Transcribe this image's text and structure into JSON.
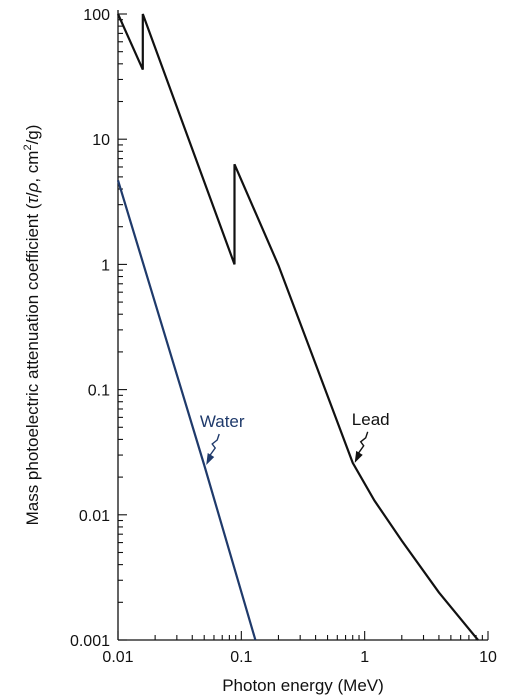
{
  "chart_data": {
    "type": "line",
    "xlabel": "Photon energy (MeV)",
    "ylabel_main": "Mass photoelectric attenuation coefficient (",
    "ylabel_tau": "τ",
    "ylabel_slash": "/",
    "ylabel_rho": "ρ",
    "ylabel_units": ", cm",
    "ylabel_sup": "2",
    "ylabel_end": "/g)",
    "x_scale": "log",
    "y_scale": "log",
    "xlim": [
      0.01,
      10
    ],
    "ylim": [
      0.001,
      100
    ],
    "x_ticks": [
      {
        "value": 0.01,
        "label": "0.01"
      },
      {
        "value": 0.1,
        "label": "0.1"
      },
      {
        "value": 1,
        "label": "1"
      },
      {
        "value": 10,
        "label": "10"
      }
    ],
    "y_ticks": [
      {
        "value": 0.001,
        "label": "0.001"
      },
      {
        "value": 0.01,
        "label": "0.01"
      },
      {
        "value": 0.1,
        "label": "0.1"
      },
      {
        "value": 1,
        "label": "1"
      },
      {
        "value": 10,
        "label": "10"
      },
      {
        "value": 100,
        "label": "100"
      }
    ],
    "grid": false,
    "series": [
      {
        "name": "Lead",
        "color": "#111111",
        "points": [
          [
            0.01,
            100
          ],
          [
            0.0159,
            36
          ],
          [
            0.0159,
            100
          ],
          [
            0.088,
            1.0
          ],
          [
            0.088,
            6.3
          ],
          [
            0.2,
            0.98
          ],
          [
            0.4,
            0.16
          ],
          [
            0.8,
            0.026
          ],
          [
            1.2,
            0.013
          ],
          [
            2,
            0.0062
          ],
          [
            4,
            0.0024
          ],
          [
            8.3,
            0.001
          ]
        ]
      },
      {
        "name": "Water",
        "color": "#1f3a6b",
        "points": [
          [
            0.01,
            4.7
          ],
          [
            0.05,
            0.025
          ],
          [
            0.13,
            0.001
          ]
        ]
      }
    ],
    "annotations": [
      {
        "text": "Lead",
        "series": "Lead",
        "x": 0.8,
        "y": 0.026,
        "color": "#111111"
      },
      {
        "text": "Water",
        "series": "Water",
        "x": 0.05,
        "y": 0.025,
        "color": "#1f3a6b"
      }
    ]
  }
}
